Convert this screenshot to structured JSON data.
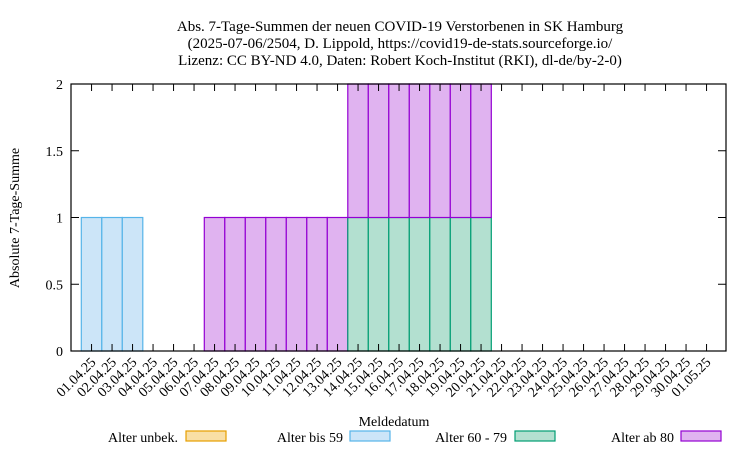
{
  "chart_data": {
    "type": "bar",
    "stacked": true,
    "title": [
      "Abs. 7-Tage-Summen der neuen COVID-19 Verstorbenen in SK Hamburg",
      "(2025-07-06/2504, D. Lippold, https://covid19-de-stats.sourceforge.io/",
      "Lizenz: CC BY-ND 4.0, Daten: Robert Koch-Institut (RKI), dl-de/by-2-0)"
    ],
    "xlabel": "Meldedatum",
    "ylabel": "Absolute 7-Tage-Summe",
    "ylim": [
      0,
      2
    ],
    "yticks": [
      "0",
      "0.5",
      "1",
      "1.5",
      "2"
    ],
    "grid": false,
    "legend_position": "bottom",
    "categories": [
      "01.04.25",
      "02.04.25",
      "03.04.25",
      "04.04.25",
      "05.04.25",
      "06.04.25",
      "07.04.25",
      "08.04.25",
      "09.04.25",
      "10.04.25",
      "11.04.25",
      "12.04.25",
      "13.04.25",
      "14.04.25",
      "15.04.25",
      "16.04.25",
      "17.04.25",
      "18.04.25",
      "19.04.25",
      "20.04.25",
      "21.04.25",
      "22.04.25",
      "23.04.25",
      "24.04.25",
      "25.04.25",
      "26.04.25",
      "27.04.25",
      "28.04.25",
      "29.04.25",
      "30.04.25",
      "01.05.25"
    ],
    "series": [
      {
        "name": "Alter unbek.",
        "fill": "#f9dfa6",
        "stroke": "#e69f00",
        "values": [
          0,
          0,
          0,
          0,
          0,
          0,
          0,
          0,
          0,
          0,
          0,
          0,
          0,
          0,
          0,
          0,
          0,
          0,
          0,
          0,
          0,
          0,
          0,
          0,
          0,
          0,
          0,
          0,
          0,
          0,
          0
        ]
      },
      {
        "name": "Alter bis 59",
        "fill": "#cce5f8",
        "stroke": "#56b4e9",
        "values": [
          1,
          1,
          1,
          0,
          0,
          0,
          0,
          0,
          0,
          0,
          0,
          0,
          0,
          0,
          0,
          0,
          0,
          0,
          0,
          0,
          0,
          0,
          0,
          0,
          0,
          0,
          0,
          0,
          0,
          0,
          0
        ]
      },
      {
        "name": "Alter 60 - 79",
        "fill": "#b3e0d0",
        "stroke": "#009e73",
        "values": [
          0,
          0,
          0,
          0,
          0,
          0,
          0,
          0,
          0,
          0,
          0,
          0,
          0,
          1,
          1,
          1,
          1,
          1,
          1,
          1,
          0,
          0,
          0,
          0,
          0,
          0,
          0,
          0,
          0,
          0,
          0
        ]
      },
      {
        "name": "Alter ab 80",
        "fill": "#e0b3f0",
        "stroke": "#9400d3",
        "values": [
          0,
          0,
          0,
          0,
          0,
          0,
          1,
          1,
          1,
          1,
          1,
          1,
          1,
          1,
          1,
          1,
          1,
          1,
          1,
          1,
          0,
          0,
          0,
          0,
          0,
          0,
          0,
          0,
          0,
          0,
          0
        ]
      }
    ]
  }
}
